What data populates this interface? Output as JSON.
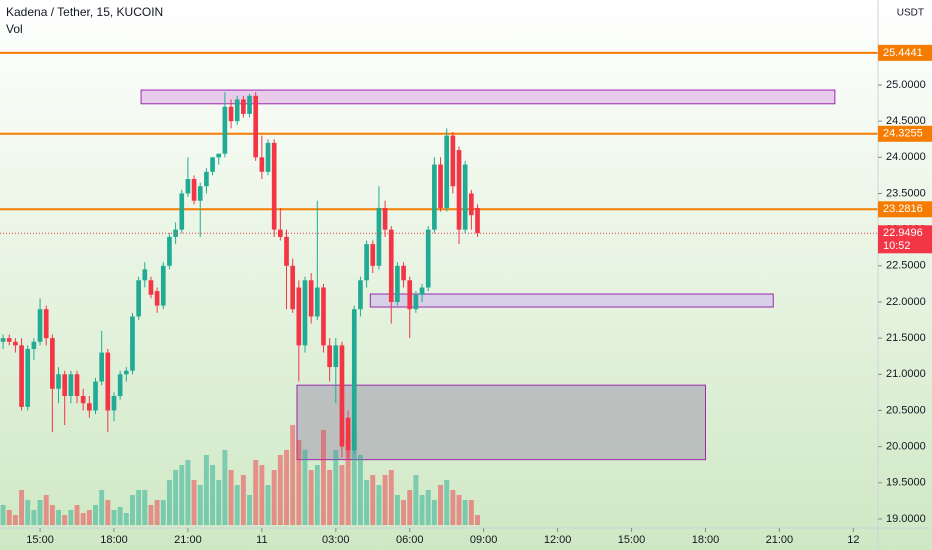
{
  "chart_data": {
    "type": "candlestick",
    "title": "Kadena / Tether, 15, KUCOIN",
    "volume_label": "Vol",
    "currency": "USDT",
    "up_color": "#22ab94",
    "down_color": "#f23645",
    "ylim": [
      18.875,
      26.175
    ],
    "yticks": [
      {
        "value": 19,
        "label": "19.0000"
      },
      {
        "value": 19.5,
        "label": "19.5000"
      },
      {
        "value": 20,
        "label": "20.0000"
      },
      {
        "value": 20.5,
        "label": "20.5000"
      },
      {
        "value": 21,
        "label": "21.0000"
      },
      {
        "value": 21.5,
        "label": "21.5000"
      },
      {
        "value": 22,
        "label": "22.0000"
      },
      {
        "value": 22.5,
        "label": "22.5000"
      },
      {
        "value": 23,
        "label": "23.0000"
      },
      {
        "value": 23.5,
        "label": "23.5000"
      },
      {
        "value": 24,
        "label": "24.0000"
      },
      {
        "value": 24.5,
        "label": "24.5000"
      },
      {
        "value": 25,
        "label": "25.0000"
      }
    ],
    "xlim": [
      -0.5,
      142
    ],
    "xticks": [
      {
        "value": 6,
        "label": "15:00"
      },
      {
        "value": 18,
        "label": "18:00"
      },
      {
        "value": 30,
        "label": "21:00"
      },
      {
        "value": 42,
        "label": "11"
      },
      {
        "value": 54,
        "label": "03:00"
      },
      {
        "value": 66,
        "label": "06:00"
      },
      {
        "value": 78,
        "label": "09:00"
      },
      {
        "value": 90,
        "label": "12:00"
      },
      {
        "value": 102,
        "label": "15:00"
      },
      {
        "value": 114,
        "label": "18:00"
      },
      {
        "value": 126,
        "label": "21:00"
      },
      {
        "value": 138,
        "label": "12"
      }
    ],
    "ohlc": [
      [
        21.45,
        21.55,
        21.35,
        21.5
      ],
      [
        21.5,
        21.55,
        21.4,
        21.45
      ],
      [
        21.45,
        21.5,
        21.3,
        21.4
      ],
      [
        21.4,
        21.5,
        20.5,
        20.55
      ],
      [
        20.55,
        21.4,
        20.5,
        21.35
      ],
      [
        21.35,
        21.5,
        21.2,
        21.45
      ],
      [
        21.45,
        22.05,
        21.4,
        21.9
      ],
      [
        21.9,
        21.95,
        21.4,
        21.5
      ],
      [
        21.5,
        21.55,
        20.2,
        20.8
      ],
      [
        20.8,
        21.1,
        20.6,
        21.0
      ],
      [
        21.0,
        21.05,
        20.3,
        20.7
      ],
      [
        20.7,
        21.05,
        20.6,
        21.0
      ],
      [
        21.0,
        21.05,
        20.6,
        20.7
      ],
      [
        20.7,
        20.8,
        20.5,
        20.6
      ],
      [
        20.6,
        20.7,
        20.4,
        20.5
      ],
      [
        20.5,
        20.95,
        20.45,
        20.9
      ],
      [
        20.9,
        21.6,
        20.85,
        21.3
      ],
      [
        21.3,
        21.35,
        20.2,
        20.5
      ],
      [
        20.5,
        20.75,
        20.35,
        20.7
      ],
      [
        20.7,
        21.05,
        20.65,
        21.0
      ],
      [
        21.0,
        21.1,
        20.9,
        21.05
      ],
      [
        21.05,
        21.85,
        21.0,
        21.8
      ],
      [
        21.8,
        22.35,
        21.75,
        22.3
      ],
      [
        22.3,
        22.55,
        22.2,
        22.45
      ],
      [
        22.3,
        22.35,
        22.05,
        22.1
      ],
      [
        22.15,
        22.2,
        21.85,
        21.95
      ],
      [
        21.95,
        22.55,
        21.9,
        22.5
      ],
      [
        22.5,
        22.95,
        22.45,
        22.9
      ],
      [
        22.9,
        23.1,
        22.8,
        23.0
      ],
      [
        23.0,
        23.55,
        22.95,
        23.5
      ],
      [
        23.5,
        24.0,
        23.45,
        23.7
      ],
      [
        23.7,
        23.75,
        23.35,
        23.4
      ],
      [
        23.4,
        23.65,
        22.9,
        23.6
      ],
      [
        23.6,
        23.85,
        23.5,
        23.8
      ],
      [
        23.8,
        24.0,
        23.75,
        24.0
      ],
      [
        24.0,
        24.05,
        23.9,
        24.05
      ],
      [
        24.05,
        24.9,
        24.0,
        24.7
      ],
      [
        24.7,
        24.8,
        24.4,
        24.5
      ],
      [
        24.5,
        24.85,
        24.45,
        24.8
      ],
      [
        24.8,
        24.85,
        24.55,
        24.6
      ],
      [
        24.6,
        24.88,
        24.55,
        24.85
      ],
      [
        24.85,
        24.9,
        23.95,
        24.0
      ],
      [
        24.0,
        24.3,
        23.7,
        23.8
      ],
      [
        23.8,
        24.25,
        23.75,
        24.2
      ],
      [
        24.2,
        24.25,
        22.9,
        23.0
      ],
      [
        23.0,
        23.3,
        22.85,
        22.9
      ],
      [
        22.9,
        23.0,
        21.9,
        22.5
      ],
      [
        22.5,
        22.6,
        21.85,
        21.9
      ],
      [
        22.2,
        22.3,
        20.9,
        21.4
      ],
      [
        21.4,
        22.35,
        21.3,
        22.3
      ],
      [
        22.3,
        22.4,
        21.7,
        21.8
      ],
      [
        21.8,
        23.4,
        21.75,
        22.2
      ],
      [
        22.2,
        22.25,
        21.3,
        21.4
      ],
      [
        21.4,
        21.5,
        20.9,
        21.1
      ],
      [
        21.1,
        21.5,
        20.6,
        21.4
      ],
      [
        21.4,
        21.45,
        19.85,
        20.0
      ],
      [
        20.4,
        20.5,
        19.85,
        19.95
      ],
      [
        19.95,
        21.95,
        19.9,
        21.9
      ],
      [
        21.9,
        22.35,
        21.8,
        22.3
      ],
      [
        22.3,
        22.85,
        22.2,
        22.8
      ],
      [
        22.8,
        22.85,
        22.4,
        22.5
      ],
      [
        22.5,
        23.6,
        22.45,
        23.3
      ],
      [
        23.3,
        23.4,
        22.9,
        23.0
      ],
      [
        23.0,
        23.05,
        21.7,
        22.0
      ],
      [
        22.0,
        22.55,
        21.95,
        22.5
      ],
      [
        22.5,
        22.55,
        22.2,
        22.3
      ],
      [
        22.3,
        22.35,
        21.5,
        21.9
      ],
      [
        21.9,
        22.15,
        21.85,
        22.1
      ],
      [
        22.1,
        22.25,
        22.0,
        22.2
      ],
      [
        22.2,
        23.05,
        22.15,
        23.0
      ],
      [
        23.0,
        24.0,
        22.95,
        23.9
      ],
      [
        23.9,
        24.0,
        23.25,
        23.3
      ],
      [
        23.3,
        24.4,
        23.25,
        24.3
      ],
      [
        24.3,
        24.35,
        23.5,
        23.6
      ],
      [
        24.1,
        24.15,
        22.8,
        23.0
      ],
      [
        23.0,
        23.95,
        22.95,
        23.9
      ],
      [
        23.5,
        23.55,
        23.0,
        23.2
      ],
      [
        23.3,
        23.35,
        22.9,
        22.95
      ]
    ],
    "vlim": [
      0,
      100
    ],
    "volume": [
      20,
      15,
      10,
      35,
      25,
      15,
      25,
      30,
      20,
      15,
      10,
      15,
      20,
      12,
      15,
      20,
      35,
      25,
      15,
      18,
      12,
      30,
      35,
      35,
      20,
      25,
      25,
      45,
      55,
      60,
      65,
      45,
      40,
      70,
      60,
      45,
      75,
      55,
      40,
      50,
      30,
      65,
      60,
      40,
      55,
      70,
      75,
      100,
      85,
      75,
      55,
      60,
      95,
      55,
      75,
      60,
      85,
      95,
      70,
      45,
      50,
      40,
      50,
      55,
      30,
      25,
      35,
      50,
      30,
      35,
      25,
      40,
      45,
      35,
      30,
      25,
      25,
      10
    ],
    "levels": [
      {
        "value": 25.4441,
        "label": "25.4441"
      },
      {
        "value": 24.3255,
        "label": "24.3255"
      },
      {
        "value": 23.2816,
        "label": "23.2816"
      }
    ],
    "level_color": "#f57c00",
    "last_price": {
      "value": 22.9496,
      "label": "22.9496",
      "countdown": "10:52"
    },
    "zones": [
      {
        "from": 22.4,
        "to": 135,
        "top": 24.93,
        "bottom": 24.74,
        "color": "#e1bee7"
      },
      {
        "from": 59.6,
        "to": 125,
        "top": 22.11,
        "bottom": 21.93,
        "color": "#d1c4e9"
      },
      {
        "from": 47.7,
        "to": 114,
        "top": 20.85,
        "bottom": 19.82,
        "color": "#b0b0b8"
      }
    ]
  }
}
